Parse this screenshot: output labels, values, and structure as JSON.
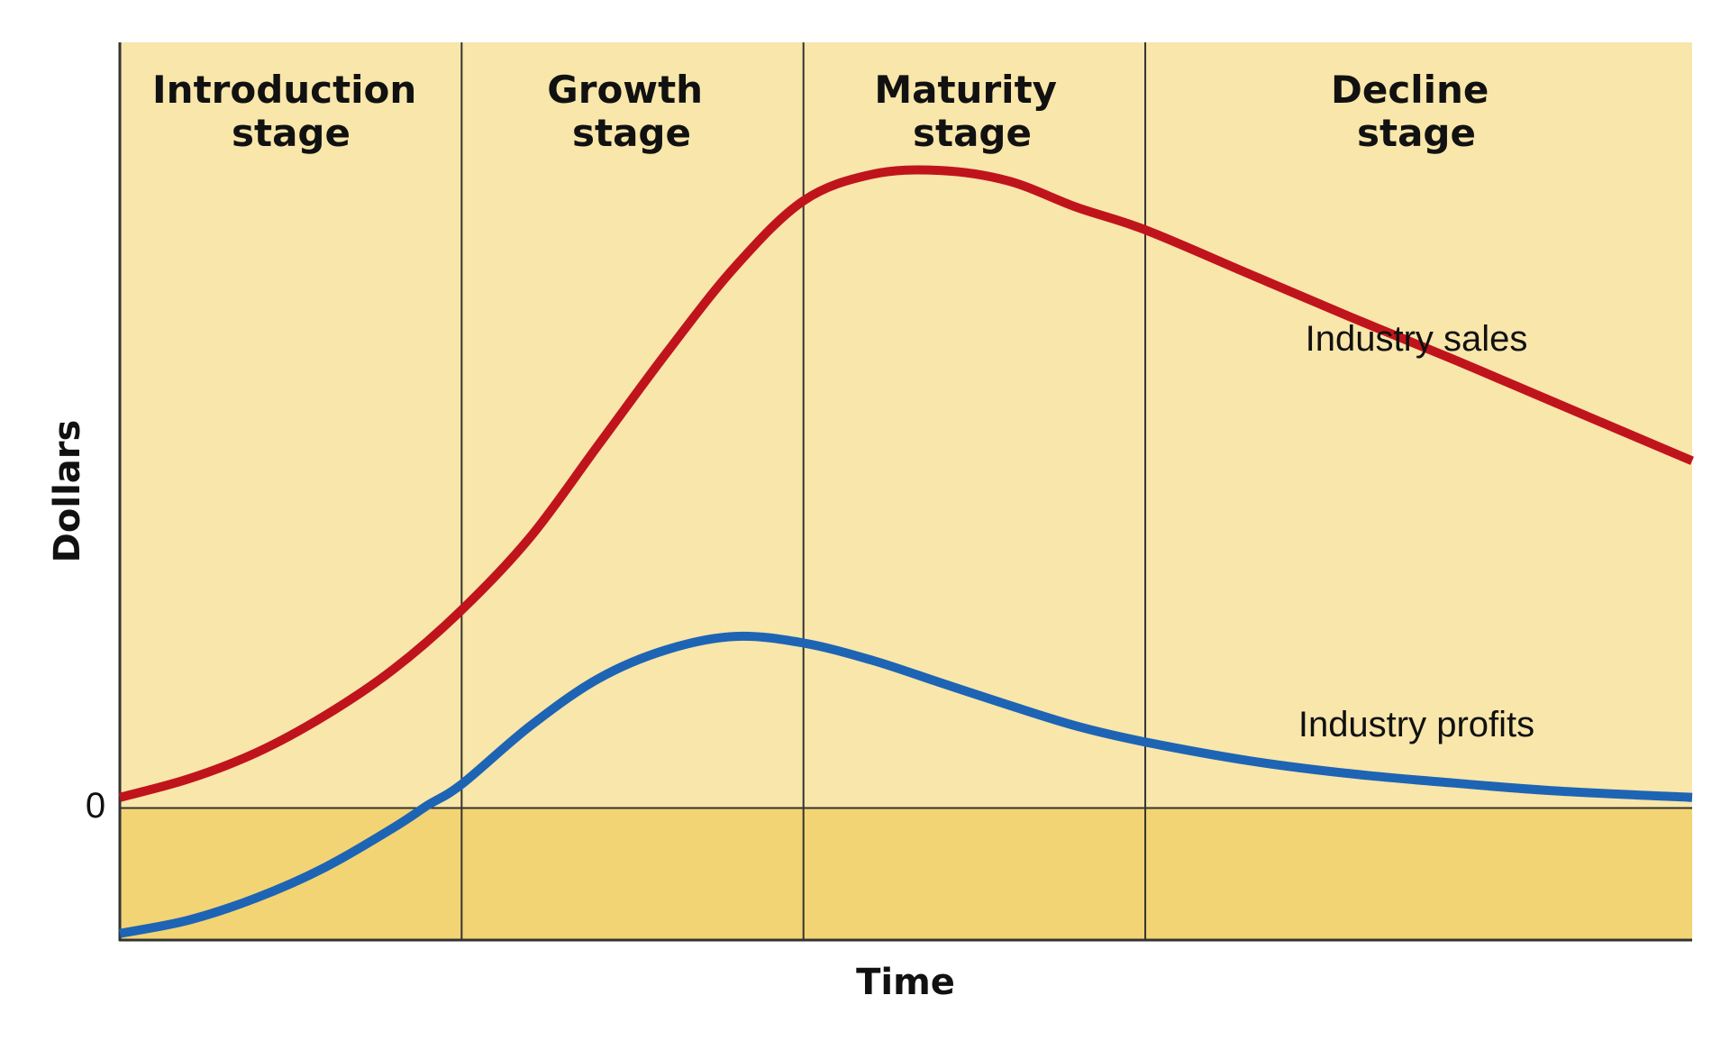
{
  "chart_data": {
    "type": "line",
    "title": "",
    "xlabel": "Time",
    "ylabel": "Dollars",
    "y_tick_labels": [
      {
        "value": 0,
        "label": "0"
      }
    ],
    "xlim": [
      0,
      4.6
    ],
    "ylim": [
      -1.0,
      5.8
    ],
    "grid": false,
    "legend": "none",
    "stages": [
      {
        "label_line1": "Introduction",
        "label_line2": "stage",
        "start": 0,
        "end": 1
      },
      {
        "label_line1": "Growth",
        "label_line2": "stage",
        "start": 1,
        "end": 2
      },
      {
        "label_line1": "Maturity",
        "label_line2": "stage",
        "start": 2,
        "end": 3
      },
      {
        "label_line1": "Decline",
        "label_line2": "stage",
        "start": 3,
        "end": 4.6
      }
    ],
    "series": [
      {
        "name": "Industry sales",
        "color": "#c0141c",
        "x": [
          0,
          0.2,
          0.4,
          0.6,
          0.8,
          1.0,
          1.2,
          1.4,
          1.6,
          1.8,
          2.0,
          2.2,
          2.4,
          2.6,
          2.8,
          3.0,
          3.3,
          3.6,
          3.9,
          4.2,
          4.6
        ],
        "values": [
          0.08,
          0.22,
          0.42,
          0.7,
          1.05,
          1.5,
          2.05,
          2.75,
          3.45,
          4.1,
          4.6,
          4.8,
          4.83,
          4.75,
          4.55,
          4.38,
          4.05,
          3.72,
          3.4,
          3.07,
          2.63
        ]
      },
      {
        "name": "Industry profits",
        "color": "#1e64b4",
        "x": [
          0,
          0.2,
          0.4,
          0.6,
          0.8,
          0.9,
          1.0,
          1.2,
          1.4,
          1.6,
          1.8,
          2.0,
          2.2,
          2.4,
          2.6,
          2.8,
          3.0,
          3.3,
          3.6,
          3.9,
          4.2,
          4.6
        ],
        "values": [
          -0.95,
          -0.85,
          -0.68,
          -0.45,
          -0.15,
          0.02,
          0.18,
          0.62,
          0.98,
          1.2,
          1.3,
          1.25,
          1.12,
          0.95,
          0.78,
          0.62,
          0.5,
          0.36,
          0.26,
          0.19,
          0.13,
          0.08
        ]
      }
    ]
  },
  "colors": {
    "positive_region": "#f8e6aa",
    "negative_region": "#f2d474",
    "grid_line": "#333333"
  }
}
